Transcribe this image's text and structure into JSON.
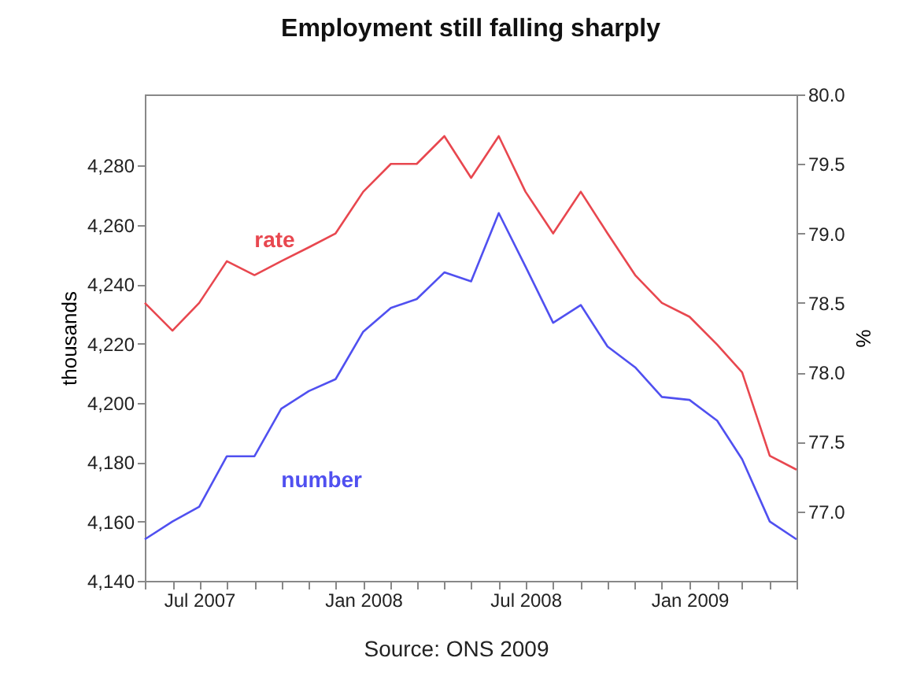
{
  "chart_data": {
    "type": "line",
    "title": "Employment still falling sharply",
    "ylabel": "thousands",
    "y2label": "%",
    "x": [
      "2007-05",
      "2007-06",
      "2007-07",
      "2007-08",
      "2007-09",
      "2007-10",
      "2007-11",
      "2007-12",
      "2008-01",
      "2008-02",
      "2008-03",
      "2008-04",
      "2008-05",
      "2008-06",
      "2008-07",
      "2008-08",
      "2008-09",
      "2008-10",
      "2008-11",
      "2008-12",
      "2009-01",
      "2009-02",
      "2009-03",
      "2009-04",
      "2009-05"
    ],
    "series": [
      {
        "name": "number",
        "color": "#5050f0",
        "values": [
          4154,
          4160,
          4165,
          4182,
          4182,
          4198,
          4204,
          4208,
          4224,
          4232,
          4235,
          4244,
          4241,
          4264,
          4246,
          4227,
          4233,
          4219,
          4212,
          4202,
          4201,
          4194,
          4181,
          4160,
          4154
        ]
      },
      {
        "name": "rate",
        "color": "#e8474f",
        "axis": "y2",
        "values": [
          78.5,
          78.3,
          78.5,
          78.8,
          78.7,
          78.8,
          78.9,
          79.0,
          79.3,
          79.5,
          79.5,
          79.7,
          79.4,
          79.7,
          79.3,
          79.0,
          79.3,
          79.0,
          78.7,
          78.5,
          78.4,
          78.2,
          78.0,
          77.4,
          77.3
        ]
      }
    ],
    "xlim": [
      "2007-05",
      "2009-05"
    ],
    "xticks": [
      {
        "value": "2007-05",
        "label": null
      },
      {
        "value": "2007-06",
        "label": null
      },
      {
        "value": "2007-07",
        "label": "Jul 2007"
      },
      {
        "value": "2007-08",
        "label": null
      },
      {
        "value": "2007-09",
        "label": null
      },
      {
        "value": "2007-10",
        "label": null
      },
      {
        "value": "2007-11",
        "label": null
      },
      {
        "value": "2007-12",
        "label": null
      },
      {
        "value": "2008-01",
        "label": "Jan 2008"
      },
      {
        "value": "2008-02",
        "label": null
      },
      {
        "value": "2008-03",
        "label": null
      },
      {
        "value": "2008-04",
        "label": null
      },
      {
        "value": "2008-05",
        "label": null
      },
      {
        "value": "2008-06",
        "label": null
      },
      {
        "value": "2008-07",
        "label": "Jul 2008"
      },
      {
        "value": "2008-08",
        "label": null
      },
      {
        "value": "2008-09",
        "label": null
      },
      {
        "value": "2008-10",
        "label": null
      },
      {
        "value": "2008-11",
        "label": null
      },
      {
        "value": "2008-12",
        "label": null
      },
      {
        "value": "2009-01",
        "label": "Jan 2009"
      },
      {
        "value": "2009-02",
        "label": null
      },
      {
        "value": "2009-03",
        "label": null
      },
      {
        "value": "2009-04",
        "label": null
      },
      {
        "value": "2009-05",
        "label": null
      }
    ],
    "ylim": [
      4140,
      4304
    ],
    "yticks": [
      {
        "value": 4140,
        "label": "4,140"
      },
      {
        "value": 4160,
        "label": "4,160"
      },
      {
        "value": 4180,
        "label": "4,180"
      },
      {
        "value": 4200,
        "label": "4,200"
      },
      {
        "value": 4220,
        "label": "4,220"
      },
      {
        "value": 4240,
        "label": "4,240"
      },
      {
        "value": 4260,
        "label": "4,260"
      },
      {
        "value": 4280,
        "label": "4,280"
      }
    ],
    "y2lim": [
      76.5,
      80.0
    ],
    "y2ticks": [
      {
        "value": 77,
        "label": "77.0"
      },
      {
        "value": 77.5,
        "label": "77.5"
      },
      {
        "value": 78,
        "label": "78.0"
      },
      {
        "value": 78.5,
        "label": "78.5"
      },
      {
        "value": 79,
        "label": "79.0"
      },
      {
        "value": 79.5,
        "label": "79.5"
      },
      {
        "value": 80,
        "label": "80.0"
      }
    ],
    "annotations": [
      "Source: ONS 2009"
    ],
    "grid": false,
    "marker": "none",
    "line_style": "solid"
  }
}
